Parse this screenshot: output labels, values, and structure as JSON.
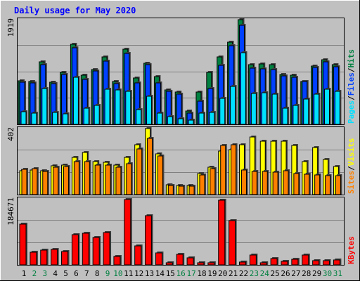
{
  "chart_data": [
    {
      "type": "bar",
      "panel": "hits_files_pages",
      "title": "Daily usage for May 2020",
      "ylabel_max": "1919",
      "ymax": 1919,
      "legend": [
        {
          "name": "Hits",
          "color": "#008040"
        },
        {
          "name": "Files",
          "color": "#0040ff"
        },
        {
          "name": "Pages",
          "color": "#00e0ff"
        }
      ],
      "categories": [
        "1",
        "2",
        "3",
        "4",
        "5",
        "6",
        "7",
        "8",
        "9",
        "10",
        "11",
        "12",
        "13",
        "14",
        "15",
        "16",
        "17",
        "18",
        "19",
        "20",
        "21",
        "22",
        "23",
        "24",
        "25",
        "26",
        "27",
        "28",
        "29",
        "30",
        "31"
      ],
      "weekend_days": [
        "2",
        "3",
        "9",
        "10",
        "16",
        "17",
        "23",
        "24",
        "30",
        "31"
      ],
      "series": [
        {
          "name": "Hits",
          "values": [
            800,
            790,
            1140,
            770,
            950,
            1470,
            900,
            1000,
            1230,
            780,
            1380,
            850,
            1120,
            870,
            630,
            590,
            240,
            590,
            950,
            1230,
            1510,
            1920,
            1090,
            1110,
            1090,
            910,
            900,
            780,
            1070,
            1180,
            1090
          ]
        },
        {
          "name": "Files",
          "values": [
            770,
            760,
            1100,
            750,
            920,
            1400,
            830,
            980,
            1160,
            750,
            1300,
            760,
            1100,
            760,
            610,
            550,
            200,
            420,
            660,
            1080,
            1440,
            1820,
            1030,
            1020,
            1010,
            890,
            860,
            780,
            1040,
            1140,
            1060
          ]
        },
        {
          "name": "Pages",
          "values": [
            230,
            200,
            660,
            220,
            190,
            860,
            300,
            350,
            640,
            630,
            610,
            270,
            520,
            210,
            140,
            100,
            80,
            210,
            220,
            480,
            690,
            1320,
            570,
            580,
            550,
            290,
            350,
            460,
            560,
            650,
            600
          ]
        }
      ]
    },
    {
      "type": "bar",
      "panel": "sites_visits",
      "ylabel_max": "402",
      "ymax": 402,
      "legend": [
        {
          "name": "Visits",
          "color": "#ffff00"
        },
        {
          "name": "Sites",
          "color": "#ff8000"
        }
      ],
      "categories": [
        "1",
        "2",
        "3",
        "4",
        "5",
        "6",
        "7",
        "8",
        "9",
        "10",
        "11",
        "12",
        "13",
        "14",
        "15",
        "16",
        "17",
        "18",
        "19",
        "20",
        "21",
        "22",
        "23",
        "24",
        "25",
        "26",
        "27",
        "28",
        "29",
        "30",
        "31"
      ],
      "series": [
        {
          "name": "Visits",
          "values": [
            145,
            150,
            145,
            175,
            180,
            225,
            255,
            200,
            195,
            180,
            225,
            305,
            402,
            250,
            60,
            55,
            55,
            130,
            165,
            265,
            275,
            305,
            350,
            325,
            325,
            325,
            300,
            200,
            285,
            215,
            170
          ]
        },
        {
          "name": "Sites",
          "values": [
            155,
            160,
            140,
            165,
            170,
            200,
            200,
            180,
            180,
            165,
            190,
            280,
            340,
            235,
            55,
            50,
            50,
            120,
            160,
            300,
            305,
            150,
            140,
            140,
            135,
            145,
            130,
            125,
            120,
            115,
            115
          ]
        }
      ]
    },
    {
      "type": "bar",
      "panel": "kbytes",
      "ylabel_max": "184671",
      "ymax": 184671,
      "legend": [
        {
          "name": "KBytes",
          "color": "#ff0000"
        }
      ],
      "categories": [
        "1",
        "2",
        "3",
        "4",
        "5",
        "6",
        "7",
        "8",
        "9",
        "10",
        "11",
        "12",
        "13",
        "14",
        "15",
        "16",
        "17",
        "18",
        "19",
        "20",
        "21",
        "22",
        "23",
        "24",
        "25",
        "26",
        "27",
        "28",
        "29",
        "30",
        "31"
      ],
      "series": [
        {
          "name": "KBytes",
          "values": [
            113000,
            36000,
            42000,
            43000,
            38000,
            85000,
            88000,
            76000,
            91000,
            23000,
            182000,
            53000,
            137000,
            33000,
            6000,
            30000,
            20000,
            6000,
            6000,
            180000,
            124000,
            8000,
            28000,
            5000,
            17000,
            9000,
            15000,
            28000,
            12000,
            11000,
            14000
          ]
        }
      ]
    }
  ]
}
